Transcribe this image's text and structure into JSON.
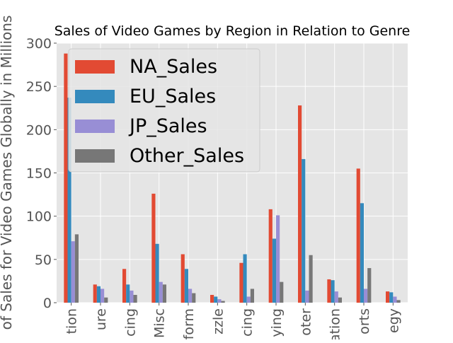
{
  "chart_data": {
    "type": "bar",
    "title": "Sales of Video Games by Region in Relation to Genre",
    "xlabel": "",
    "ylabel": "of Sales for Video Games Globally in Millions",
    "ylim": [
      0,
      300
    ],
    "yticks": [
      0,
      50,
      100,
      150,
      200,
      250,
      300
    ],
    "grid": true,
    "legend_position": "top-left",
    "categories": [
      "Action",
      "Adventure",
      "Fighting",
      "Misc",
      "Platform",
      "Puzzle",
      "Racing",
      "Role-Playing",
      "Shooter",
      "Simulation",
      "Sports",
      "Strategy"
    ],
    "tick_labels": [
      "tion",
      "ure",
      "cing",
      "Misc",
      "form",
      "zzle",
      "cing",
      "ying",
      "oter",
      "ation",
      "orts",
      "egy"
    ],
    "series": [
      {
        "name": "NA_Sales",
        "color": "#e24a33",
        "values": [
          288,
          21,
          39,
          126,
          56,
          9,
          46,
          108,
          228,
          27,
          155,
          13
        ]
      },
      {
        "name": "EU_Sales",
        "color": "#348abd",
        "values": [
          237,
          19,
          21,
          68,
          39,
          7,
          56,
          74,
          166,
          26,
          115,
          12
        ]
      },
      {
        "name": "JP_Sales",
        "color": "#988ed5",
        "values": [
          71,
          16,
          14,
          24,
          16,
          4,
          7,
          101,
          14,
          13,
          16,
          7
        ]
      },
      {
        "name": "Other_Sales",
        "color": "#777777",
        "values": [
          79,
          6,
          9,
          21,
          11,
          2,
          16,
          24,
          55,
          6,
          40,
          3
        ]
      }
    ]
  }
}
